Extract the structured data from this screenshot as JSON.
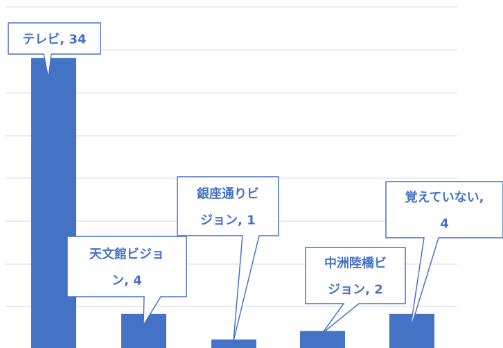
{
  "chart_data": {
    "type": "bar",
    "categories": [
      "テレビ",
      "天文館ビジョン",
      "銀座通りビジョン",
      "中洲陸橋ビジョン",
      "覚えていない"
    ],
    "values": [
      34,
      4,
      1,
      2,
      4
    ],
    "data_labels": [
      [
        "テレビ, 34"
      ],
      [
        "天文館ビジョ",
        "ン, 4"
      ],
      [
        "銀座通りビ",
        "ジョン, 1"
      ],
      [
        "中洲陸橋ビ",
        "ジョン, 2"
      ],
      [
        "覚えていない,",
        "4"
      ]
    ],
    "grid": true,
    "legend": "none"
  },
  "colors": {
    "bar": "#4472C4",
    "gridline": "#D9D9D9",
    "callout_border": "#4472C4",
    "callout_fill": "#FFFFFF",
    "label_text": "#4472C4"
  }
}
